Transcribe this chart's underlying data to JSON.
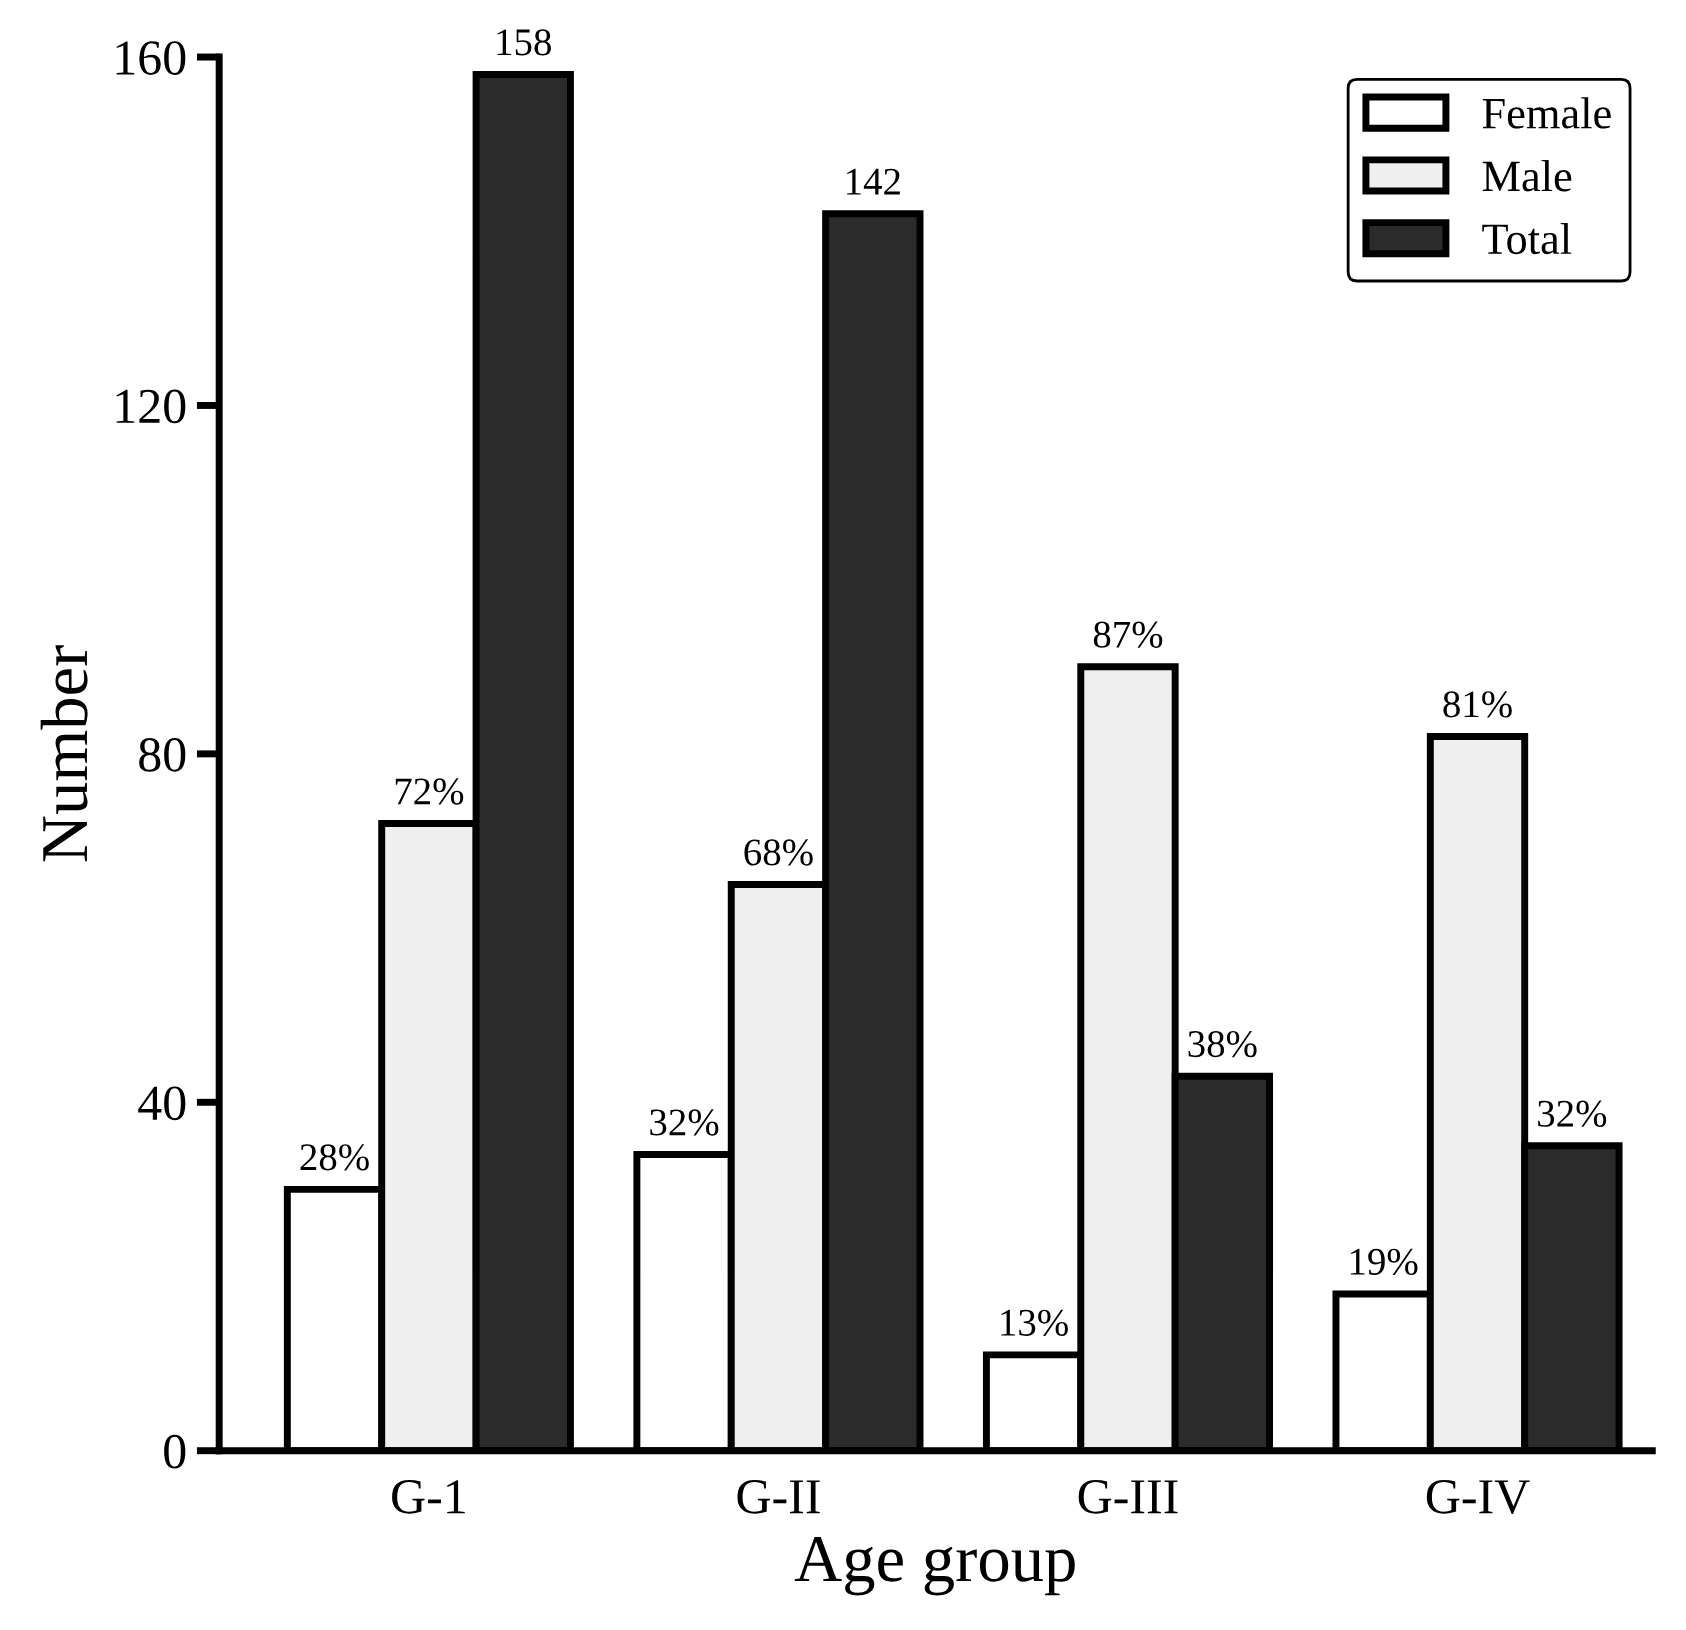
{
  "chart_data": {
    "type": "bar",
    "xlabel": "Age group",
    "ylabel": "Number",
    "categories": [
      "G-1",
      "G-II",
      "G-III",
      "G-IV"
    ],
    "series": [
      {
        "name": "Female",
        "color": "#ffffff",
        "values": [
          30,
          34,
          11,
          18
        ]
      },
      {
        "name": "Male",
        "color": "#efefef",
        "values": [
          72,
          65,
          90,
          82
        ]
      },
      {
        "name": "Total",
        "color": "#2b2b2b",
        "values": [
          158,
          142,
          43,
          35
        ]
      }
    ],
    "annotations": [
      "28%",
      "72%",
      "158",
      "32%",
      "68%",
      "142",
      "13%",
      "87%",
      "38%",
      "19%",
      "81%",
      "32%"
    ],
    "ylim": [
      0,
      160
    ],
    "yticks": [
      0,
      40,
      80,
      120,
      160
    ],
    "grid": false,
    "legend": "top right"
  }
}
